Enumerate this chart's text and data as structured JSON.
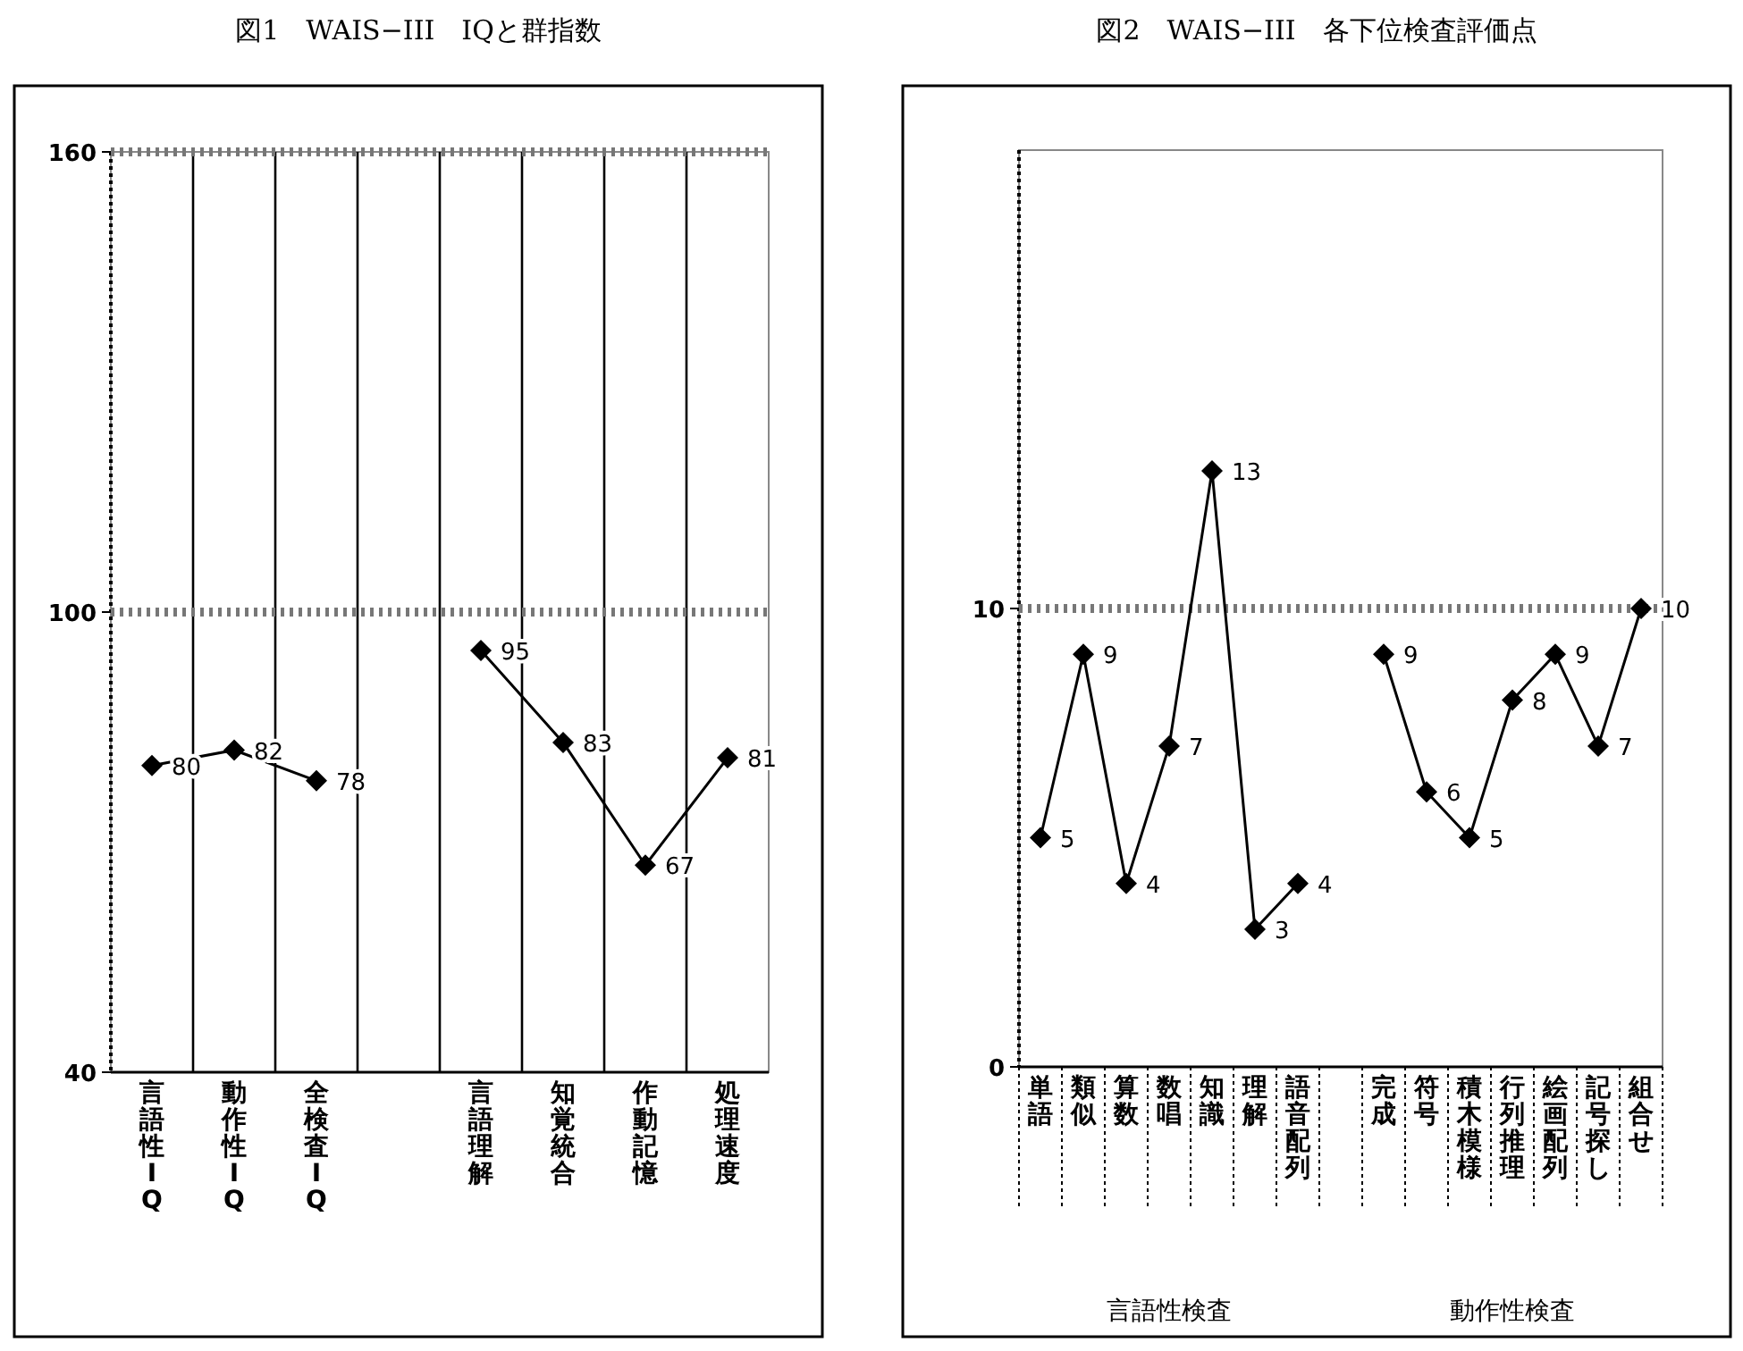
{
  "chart_data": [
    {
      "type": "line",
      "title": "図1　WAIS−III　IQと群指数",
      "categories": [
        "言語性IQ",
        "動作性IQ",
        "全検査IQ",
        null,
        "言語理解",
        "知覚統合",
        "作動記憶",
        "処理速度"
      ],
      "series": [
        {
          "color": "#000000",
          "values": [
            80,
            82,
            78,
            null,
            95,
            83,
            67,
            81
          ]
        }
      ],
      "ylim": [
        40,
        160
      ],
      "yticks": [
        40,
        100,
        160
      ],
      "ref_lines": [
        {
          "axis": "y",
          "value": 100
        },
        {
          "axis": "y",
          "value": 160
        }
      ],
      "grid": "x",
      "marker": "diamond",
      "line_style": "solid",
      "data_labels": true
    },
    {
      "type": "line",
      "title": "図2　WAIS−III　各下位検査評価点",
      "categories": [
        "単語",
        "類似",
        "算数",
        "数唱",
        "知識",
        "理解",
        "語音配列",
        null,
        "完成",
        "符号",
        "積木模様",
        "行列推理",
        "絵画配列",
        "記号探し",
        "組合せ"
      ],
      "series": [
        {
          "color": "#000000",
          "values": [
            5,
            9,
            4,
            7,
            13,
            3,
            4,
            null,
            9,
            6,
            5,
            8,
            9,
            7,
            10
          ]
        }
      ],
      "ylim": [
        0,
        20
      ],
      "yticks": [
        0,
        10
      ],
      "ref_lines": [
        {
          "axis": "y",
          "value": 10
        }
      ],
      "annotations": [
        "言語性検査",
        "動作性検査"
      ],
      "grid": false,
      "marker": "diamond",
      "line_style": "solid",
      "data_labels": true
    }
  ]
}
